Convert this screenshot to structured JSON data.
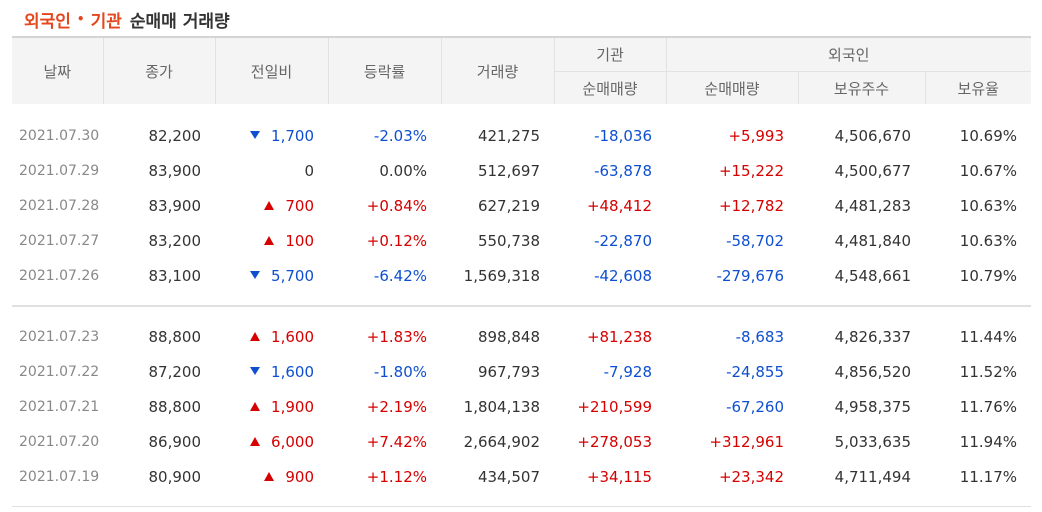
{
  "title": {
    "foreign": "외국인",
    "dot": "•",
    "institution": "기관",
    "rest": "순매매 거래량"
  },
  "headers": {
    "date": "날짜",
    "close": "종가",
    "change": "전일비",
    "rate": "등락률",
    "volume": "거래량",
    "institution_group": "기관",
    "institution_net": "순매매량",
    "foreign_group": "외국인",
    "foreign_net": "순매매량",
    "foreign_holdings": "보유주수",
    "foreign_ratio": "보유율"
  },
  "colors": {
    "up": "#d60000",
    "down": "#0e4fd1",
    "title_accent": "#e4461e"
  },
  "rows": [
    {
      "date": "2021.07.30",
      "close": "82,200",
      "dir": "down",
      "change": "1,700",
      "rate": "-2.03%",
      "volume": "421,275",
      "inst": "-18,036",
      "foreign": "+5,993",
      "holdings": "4,506,670",
      "ratio": "10.69%"
    },
    {
      "date": "2021.07.29",
      "close": "83,900",
      "dir": "none",
      "change": "0",
      "rate": "0.00%",
      "volume": "512,697",
      "inst": "-63,878",
      "foreign": "+15,222",
      "holdings": "4,500,677",
      "ratio": "10.67%"
    },
    {
      "date": "2021.07.28",
      "close": "83,900",
      "dir": "up",
      "change": "700",
      "rate": "+0.84%",
      "volume": "627,219",
      "inst": "+48,412",
      "foreign": "+12,782",
      "holdings": "4,481,283",
      "ratio": "10.63%"
    },
    {
      "date": "2021.07.27",
      "close": "83,200",
      "dir": "up",
      "change": "100",
      "rate": "+0.12%",
      "volume": "550,738",
      "inst": "-22,870",
      "foreign": "-58,702",
      "holdings": "4,481,840",
      "ratio": "10.63%"
    },
    {
      "date": "2021.07.26",
      "close": "83,100",
      "dir": "down",
      "change": "5,700",
      "rate": "-6.42%",
      "volume": "1,569,318",
      "inst": "-42,608",
      "foreign": "-279,676",
      "holdings": "4,548,661",
      "ratio": "10.79%"
    },
    {
      "date": "2021.07.23",
      "close": "88,800",
      "dir": "up",
      "change": "1,600",
      "rate": "+1.83%",
      "volume": "898,848",
      "inst": "+81,238",
      "foreign": "-8,683",
      "holdings": "4,826,337",
      "ratio": "11.44%"
    },
    {
      "date": "2021.07.22",
      "close": "87,200",
      "dir": "down",
      "change": "1,600",
      "rate": "-1.80%",
      "volume": "967,793",
      "inst": "-7,928",
      "foreign": "-24,855",
      "holdings": "4,856,520",
      "ratio": "11.52%"
    },
    {
      "date": "2021.07.21",
      "close": "88,800",
      "dir": "up",
      "change": "1,900",
      "rate": "+2.19%",
      "volume": "1,804,138",
      "inst": "+210,599",
      "foreign": "-67,260",
      "holdings": "4,958,375",
      "ratio": "11.76%"
    },
    {
      "date": "2021.07.20",
      "close": "86,900",
      "dir": "up",
      "change": "6,000",
      "rate": "+7.42%",
      "volume": "2,664,902",
      "inst": "+278,053",
      "foreign": "+312,961",
      "holdings": "5,033,635",
      "ratio": "11.94%"
    },
    {
      "date": "2021.07.19",
      "close": "80,900",
      "dir": "up",
      "change": "900",
      "rate": "+1.12%",
      "volume": "434,507",
      "inst": "+34,115",
      "foreign": "+23,342",
      "holdings": "4,711,494",
      "ratio": "11.17%"
    }
  ]
}
